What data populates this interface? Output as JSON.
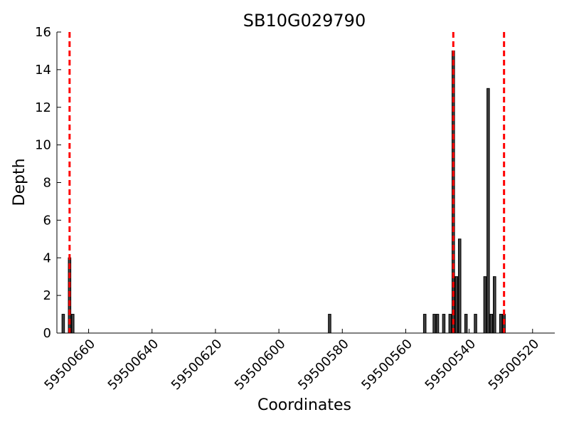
{
  "chart_data": {
    "type": "bar",
    "title": "SB10G029790",
    "xlabel": "Coordinates",
    "ylabel": "Depth",
    "x_reversed": true,
    "xlim": [
      59500670,
      59500513
    ],
    "ylim": [
      0,
      16
    ],
    "yticks": [
      0,
      2,
      4,
      6,
      8,
      10,
      12,
      14,
      16
    ],
    "xticks": [
      59500660,
      59500640,
      59500620,
      59500600,
      59500580,
      59500560,
      59500540,
      59500520
    ],
    "bar_color": "#404040",
    "bars": [
      {
        "x": 59500668,
        "y": 1
      },
      {
        "x": 59500666,
        "y": 4
      },
      {
        "x": 59500665,
        "y": 1
      },
      {
        "x": 59500584,
        "y": 1
      },
      {
        "x": 59500554,
        "y": 1
      },
      {
        "x": 59500551,
        "y": 1
      },
      {
        "x": 59500550,
        "y": 1
      },
      {
        "x": 59500548,
        "y": 1
      },
      {
        "x": 59500546,
        "y": 1
      },
      {
        "x": 59500545,
        "y": 15
      },
      {
        "x": 59500544,
        "y": 3
      },
      {
        "x": 59500543,
        "y": 5
      },
      {
        "x": 59500541,
        "y": 1
      },
      {
        "x": 59500538,
        "y": 1
      },
      {
        "x": 59500535,
        "y": 3
      },
      {
        "x": 59500534,
        "y": 13
      },
      {
        "x": 59500533,
        "y": 1
      },
      {
        "x": 59500532,
        "y": 3
      },
      {
        "x": 59500530,
        "y": 1
      },
      {
        "x": 59500529,
        "y": 1
      }
    ],
    "vlines": [
      {
        "x": 59500666,
        "color": "#ff0000",
        "style": "dashed"
      },
      {
        "x": 59500545,
        "color": "#ff0000",
        "style": "dashed"
      },
      {
        "x": 59500529,
        "color": "#ff0000",
        "style": "dashed"
      }
    ],
    "grid": false,
    "legend": "none"
  }
}
